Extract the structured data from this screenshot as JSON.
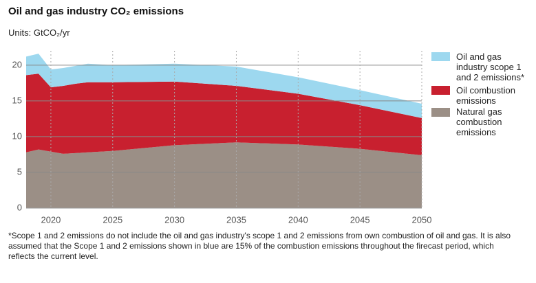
{
  "chart_data": {
    "type": "stacked_area",
    "title": "Oil and gas industry CO₂ emissions",
    "subtitle": "Units: GtCO₂/yr",
    "footnote": "*Scope 1 and 2 emissions do not include the oil and gas industry's scope 1 and 2 emissions from own combustion of oil and gas. It is also assumed that the Scope 1 and 2 emissions shown in blue are 15% of the combustion emissions throughout the firecast period, which reflects the current level.",
    "x": [
      2018,
      2019,
      2020,
      2021,
      2022,
      2023,
      2025,
      2030,
      2035,
      2040,
      2045,
      2050
    ],
    "series": [
      {
        "name": "Natural gas combustion emissions",
        "color": "#9b8f86",
        "values": [
          7.8,
          8.2,
          7.9,
          7.6,
          7.7,
          7.8,
          8.0,
          8.8,
          9.2,
          8.9,
          8.3,
          7.4
        ]
      },
      {
        "name": "Oil combustion emissions",
        "color": "#c8202f",
        "values": [
          10.8,
          10.6,
          9.0,
          9.5,
          9.7,
          9.8,
          9.6,
          8.9,
          7.9,
          7.1,
          6.1,
          5.2
        ]
      },
      {
        "name": "Oil and gas industry scope 1 and 2 emissions*",
        "color": "#9dd8ef",
        "values": [
          2.6,
          2.8,
          2.5,
          2.5,
          2.5,
          2.6,
          2.4,
          2.5,
          2.7,
          2.3,
          2.1,
          2.0
        ]
      }
    ],
    "xlim": [
      2018,
      2050
    ],
    "xticks": [
      2020,
      2025,
      2030,
      2035,
      2040,
      2045,
      2050
    ],
    "ylim": [
      0,
      22
    ],
    "yticks": [
      0,
      5,
      10,
      15,
      20
    ],
    "grid": true
  }
}
